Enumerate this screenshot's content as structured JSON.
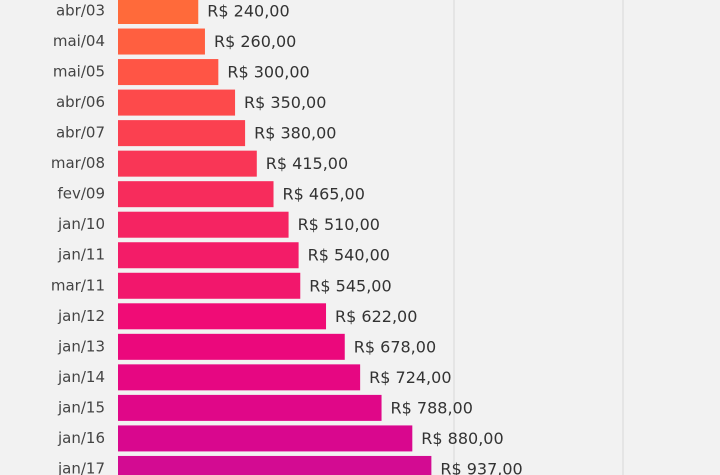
{
  "chart_data": {
    "type": "hbar",
    "categories": [
      "abr/03",
      "mai/04",
      "mai/05",
      "abr/06",
      "abr/07",
      "mar/08",
      "fev/09",
      "jan/10",
      "jan/11",
      "mar/11",
      "jan/12",
      "jan/13",
      "jan/14",
      "jan/15",
      "jan/16",
      "jan/17"
    ],
    "values": [
      240,
      260,
      300,
      350,
      380,
      415,
      465,
      510,
      540,
      545,
      622,
      678,
      724,
      788,
      880,
      937
    ],
    "value_labels": [
      "R$ 240,00",
      "R$ 260,00",
      "R$ 300,00",
      "R$ 350,00",
      "R$ 380,00",
      "R$ 415,00",
      "R$ 465,00",
      "R$ 510,00",
      "R$ 540,00",
      "R$ 545,00",
      "R$ 622,00",
      "R$ 678,00",
      "R$ 724,00",
      "R$ 788,00",
      "R$ 880,00",
      "R$ 937,00"
    ],
    "colors": [
      "#ff6a3a",
      "#ff5f40",
      "#ff5545",
      "#fd4a4b",
      "#fb4050",
      "#f93656",
      "#f72c5c",
      "#f52462",
      "#f31c68",
      "#f2176c",
      "#f00c76",
      "#eb087c",
      "#e60782",
      "#e00788",
      "#d9078e",
      "#d30b92"
    ],
    "xlim": [
      0,
      1800
    ]
  }
}
